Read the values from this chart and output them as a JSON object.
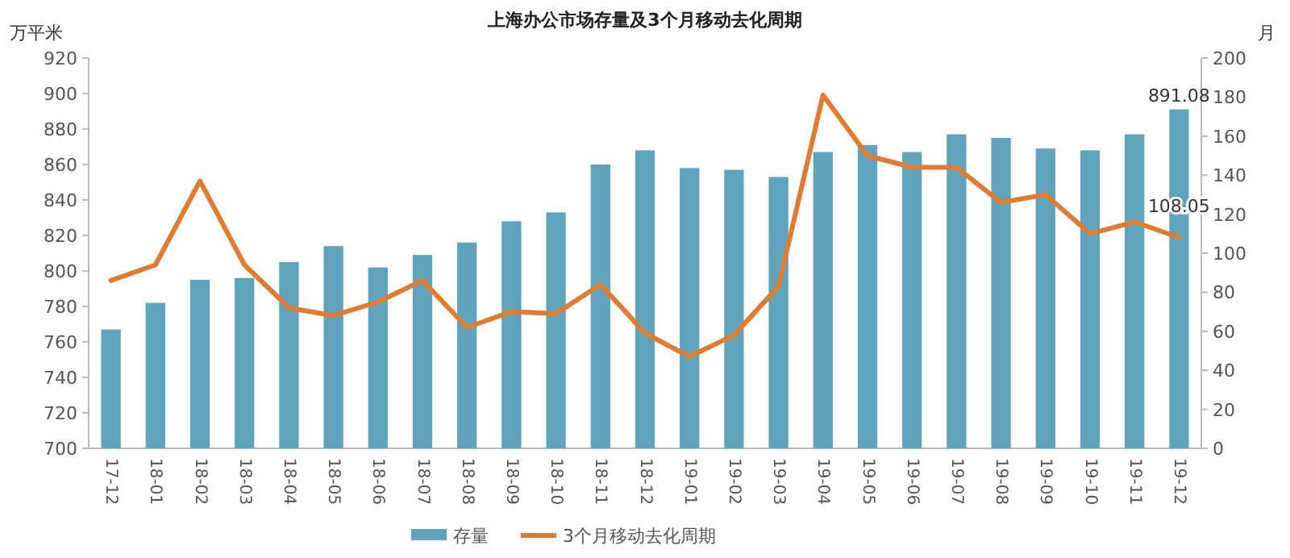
{
  "chart_data": {
    "type": "bar",
    "title": "上海办公市场存量及3个月移动去化周期",
    "ylabel": "万平米",
    "y2label": "月",
    "categories": [
      "17-12",
      "18-01",
      "18-02",
      "18-03",
      "18-04",
      "18-05",
      "18-06",
      "18-07",
      "18-08",
      "18-09",
      "18-10",
      "18-11",
      "18-12",
      "19-01",
      "19-02",
      "19-03",
      "19-04",
      "19-05",
      "19-06",
      "19-07",
      "19-08",
      "19-09",
      "19-10",
      "19-11",
      "19-12"
    ],
    "series": [
      {
        "name": "存量",
        "color": "#5fa3bd",
        "values": [
          767,
          782,
          795,
          796,
          805,
          814,
          802,
          809,
          816,
          828,
          833,
          860,
          868,
          858,
          857,
          853,
          867,
          871,
          867,
          877,
          875,
          869,
          868,
          877,
          891.08
        ],
        "value_labels": [
          null,
          null,
          null,
          null,
          null,
          null,
          null,
          null,
          null,
          null,
          null,
          null,
          null,
          null,
          null,
          null,
          null,
          null,
          null,
          null,
          null,
          null,
          null,
          null,
          "891.08"
        ]
      },
      {
        "name": "3个月移动去化周期",
        "type": "line",
        "axis": "y2",
        "color": "#e07b32",
        "values": [
          86,
          94,
          137,
          94,
          72,
          68,
          75,
          86,
          62,
          70,
          69,
          84,
          59,
          47,
          58,
          83,
          181,
          150,
          144,
          144,
          126,
          130,
          110,
          116,
          108.05
        ],
        "value_labels": [
          null,
          null,
          null,
          null,
          null,
          null,
          null,
          null,
          null,
          null,
          null,
          null,
          null,
          null,
          null,
          null,
          null,
          null,
          null,
          null,
          null,
          null,
          null,
          null,
          "108.05"
        ]
      }
    ],
    "ylim": [
      700,
      920
    ],
    "yticks": [
      700,
      720,
      740,
      760,
      780,
      800,
      820,
      840,
      860,
      880,
      900,
      920
    ],
    "y2lim": [
      0,
      200
    ],
    "y2ticks": [
      0,
      20,
      40,
      60,
      80,
      100,
      120,
      140,
      160,
      180,
      200
    ],
    "legend": "bottom",
    "grid": false
  }
}
